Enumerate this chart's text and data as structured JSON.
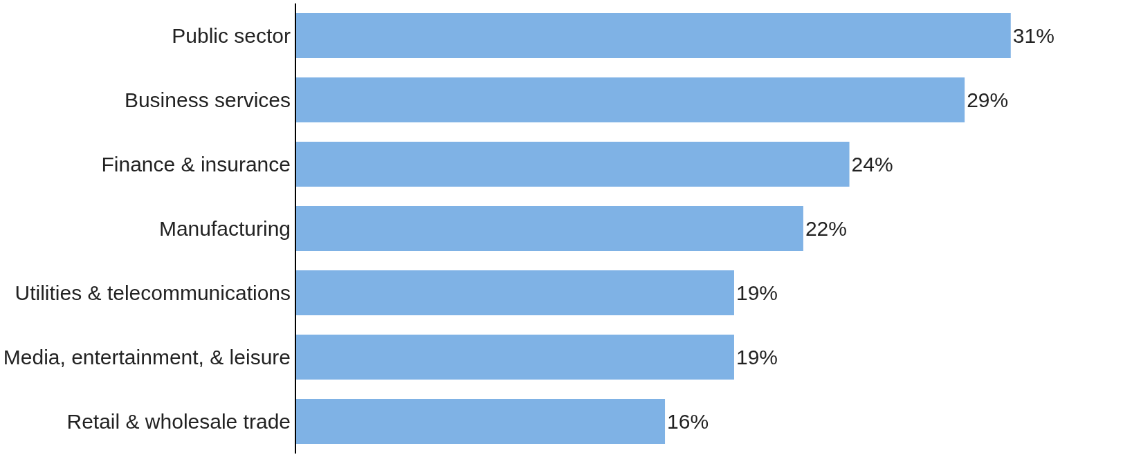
{
  "chart_data": {
    "type": "bar",
    "orientation": "horizontal",
    "categories": [
      "Public sector",
      "Business services",
      "Finance & insurance",
      "Manufacturing",
      "Utilities & telecommunications",
      "Media, entertainment, & leisure",
      "Retail & wholesale trade"
    ],
    "values": [
      31,
      29,
      24,
      22,
      19,
      19,
      16
    ],
    "value_labels": [
      "31%",
      "29%",
      "24%",
      "22%",
      "19%",
      "19%",
      "16%"
    ],
    "color": "#7fb2e5",
    "grid": false,
    "legend": false
  }
}
